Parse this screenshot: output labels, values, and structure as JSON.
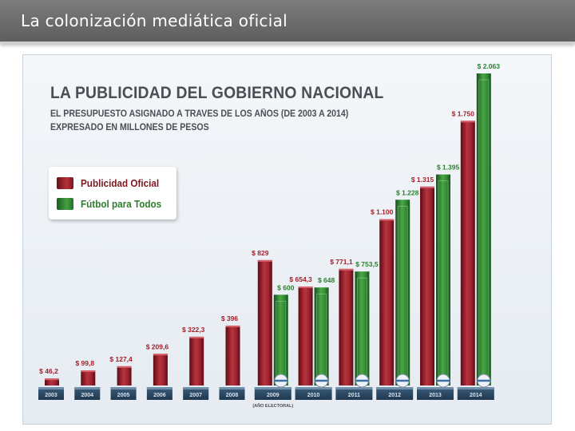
{
  "slide": {
    "title": "La colonización mediática oficial"
  },
  "chart_data": {
    "type": "bar",
    "title": "LA PUBLICIDAD DEL GOBIERNO NACIONAL",
    "subtitle_line1": "EL PRESUPUESTO ASIGNADO A TRAVES DE LOS AÑOS (DE 2003 A 2014)",
    "subtitle_line2": "EXPRESADO EN MILLONES DE PESOS",
    "categories": [
      "2003",
      "2004",
      "2005",
      "2006",
      "2007",
      "2008",
      "2009",
      "2010",
      "2011",
      "2012",
      "2013",
      "2014"
    ],
    "series": [
      {
        "name": "Publicidad Oficial",
        "color": "#9e2230",
        "values": [
          46.2,
          99.8,
          127.4,
          209.6,
          322.3,
          396,
          829,
          654.3,
          771.1,
          1100,
          1315,
          1750
        ],
        "labels": [
          "$ 46,2",
          "$ 99,8",
          "$ 127,4",
          "$ 209,6",
          "$ 322,3",
          "$ 396",
          "$ 829",
          "$ 654,3",
          "$ 771,1",
          "$ 1.100",
          "$ 1.315",
          "$ 1.750"
        ]
      },
      {
        "name": "Fútbol para Todos",
        "color": "#2f8a33",
        "values": [
          null,
          null,
          null,
          null,
          null,
          null,
          600,
          648,
          753.5,
          1228,
          1395,
          2063
        ],
        "labels": [
          null,
          null,
          null,
          null,
          null,
          null,
          "$ 600",
          "$ 648",
          "$ 753,5",
          "$ 1.228",
          "$ 1.395",
          "$ 2.063"
        ]
      }
    ],
    "annotation": {
      "category": "2009",
      "text": "(AÑO ELECTORAL)"
    },
    "legend_position": "left",
    "ylim": [
      0,
      2063
    ],
    "grid": false
  }
}
